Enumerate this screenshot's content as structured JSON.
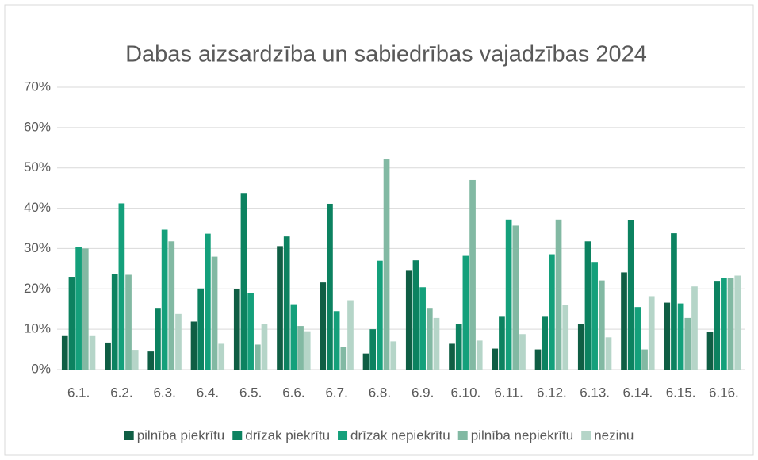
{
  "chart_data": {
    "type": "bar",
    "title": "Dabas aizsardzība un sabiedrības vajadzības 2024",
    "categories": [
      "6.1.",
      "6.2.",
      "6.3.",
      "6.4.",
      "6.5.",
      "6.6.",
      "6.7.",
      "6.8.",
      "6.9.",
      "6.10.",
      "6.11.",
      "6.12.",
      "6.13.",
      "6.14.",
      "6.15.",
      "6.16."
    ],
    "series": [
      {
        "name": "pilnībā piekrītu",
        "color": "#0f5e44",
        "values": [
          8.3,
          6.7,
          4.5,
          11.9,
          19.9,
          30.6,
          21.6,
          4,
          24.5,
          6.4,
          5.2,
          5,
          11.4,
          24.1,
          16.6,
          9.3
        ]
      },
      {
        "name": "drīzāk piekrītu",
        "color": "#0c8260",
        "values": [
          23,
          23.7,
          15.3,
          20.1,
          43.8,
          33,
          41.1,
          10,
          27.1,
          11.4,
          13.1,
          13.1,
          31.8,
          37.1,
          33.8,
          22
        ]
      },
      {
        "name": "drīzāk nepiekrītu",
        "color": "#14a07b",
        "values": [
          30.3,
          41.2,
          34.7,
          33.7,
          18.9,
          16.2,
          14.5,
          27,
          20.4,
          28.2,
          37.2,
          28.6,
          26.7,
          15.5,
          16.4,
          22.8
        ]
      },
      {
        "name": "pilnībā nepiekrītu",
        "color": "#82b9a3",
        "values": [
          30,
          23.5,
          31.8,
          28,
          6.2,
          10.8,
          5.7,
          52.1,
          15.3,
          47,
          35.7,
          37.2,
          22.1,
          5,
          12.8,
          22.7
        ]
      },
      {
        "name": "nezinu",
        "color": "#b5d5c8",
        "values": [
          8.3,
          4.9,
          13.8,
          6.4,
          11.4,
          9.5,
          17.2,
          7,
          12.8,
          7.2,
          8.8,
          16.1,
          8,
          18.2,
          20.6,
          23.3
        ]
      }
    ],
    "ylim": [
      0,
      70
    ],
    "yticks": [
      {
        "value": 0,
        "label": "0%"
      },
      {
        "value": 10,
        "label": "10%"
      },
      {
        "value": 20,
        "label": "20%"
      },
      {
        "value": 30,
        "label": "30%"
      },
      {
        "value": 40,
        "label": "40%"
      },
      {
        "value": 50,
        "label": "50%"
      },
      {
        "value": 60,
        "label": "60%"
      },
      {
        "value": 70,
        "label": "70%"
      }
    ],
    "grid": true,
    "legend": "bottom"
  }
}
